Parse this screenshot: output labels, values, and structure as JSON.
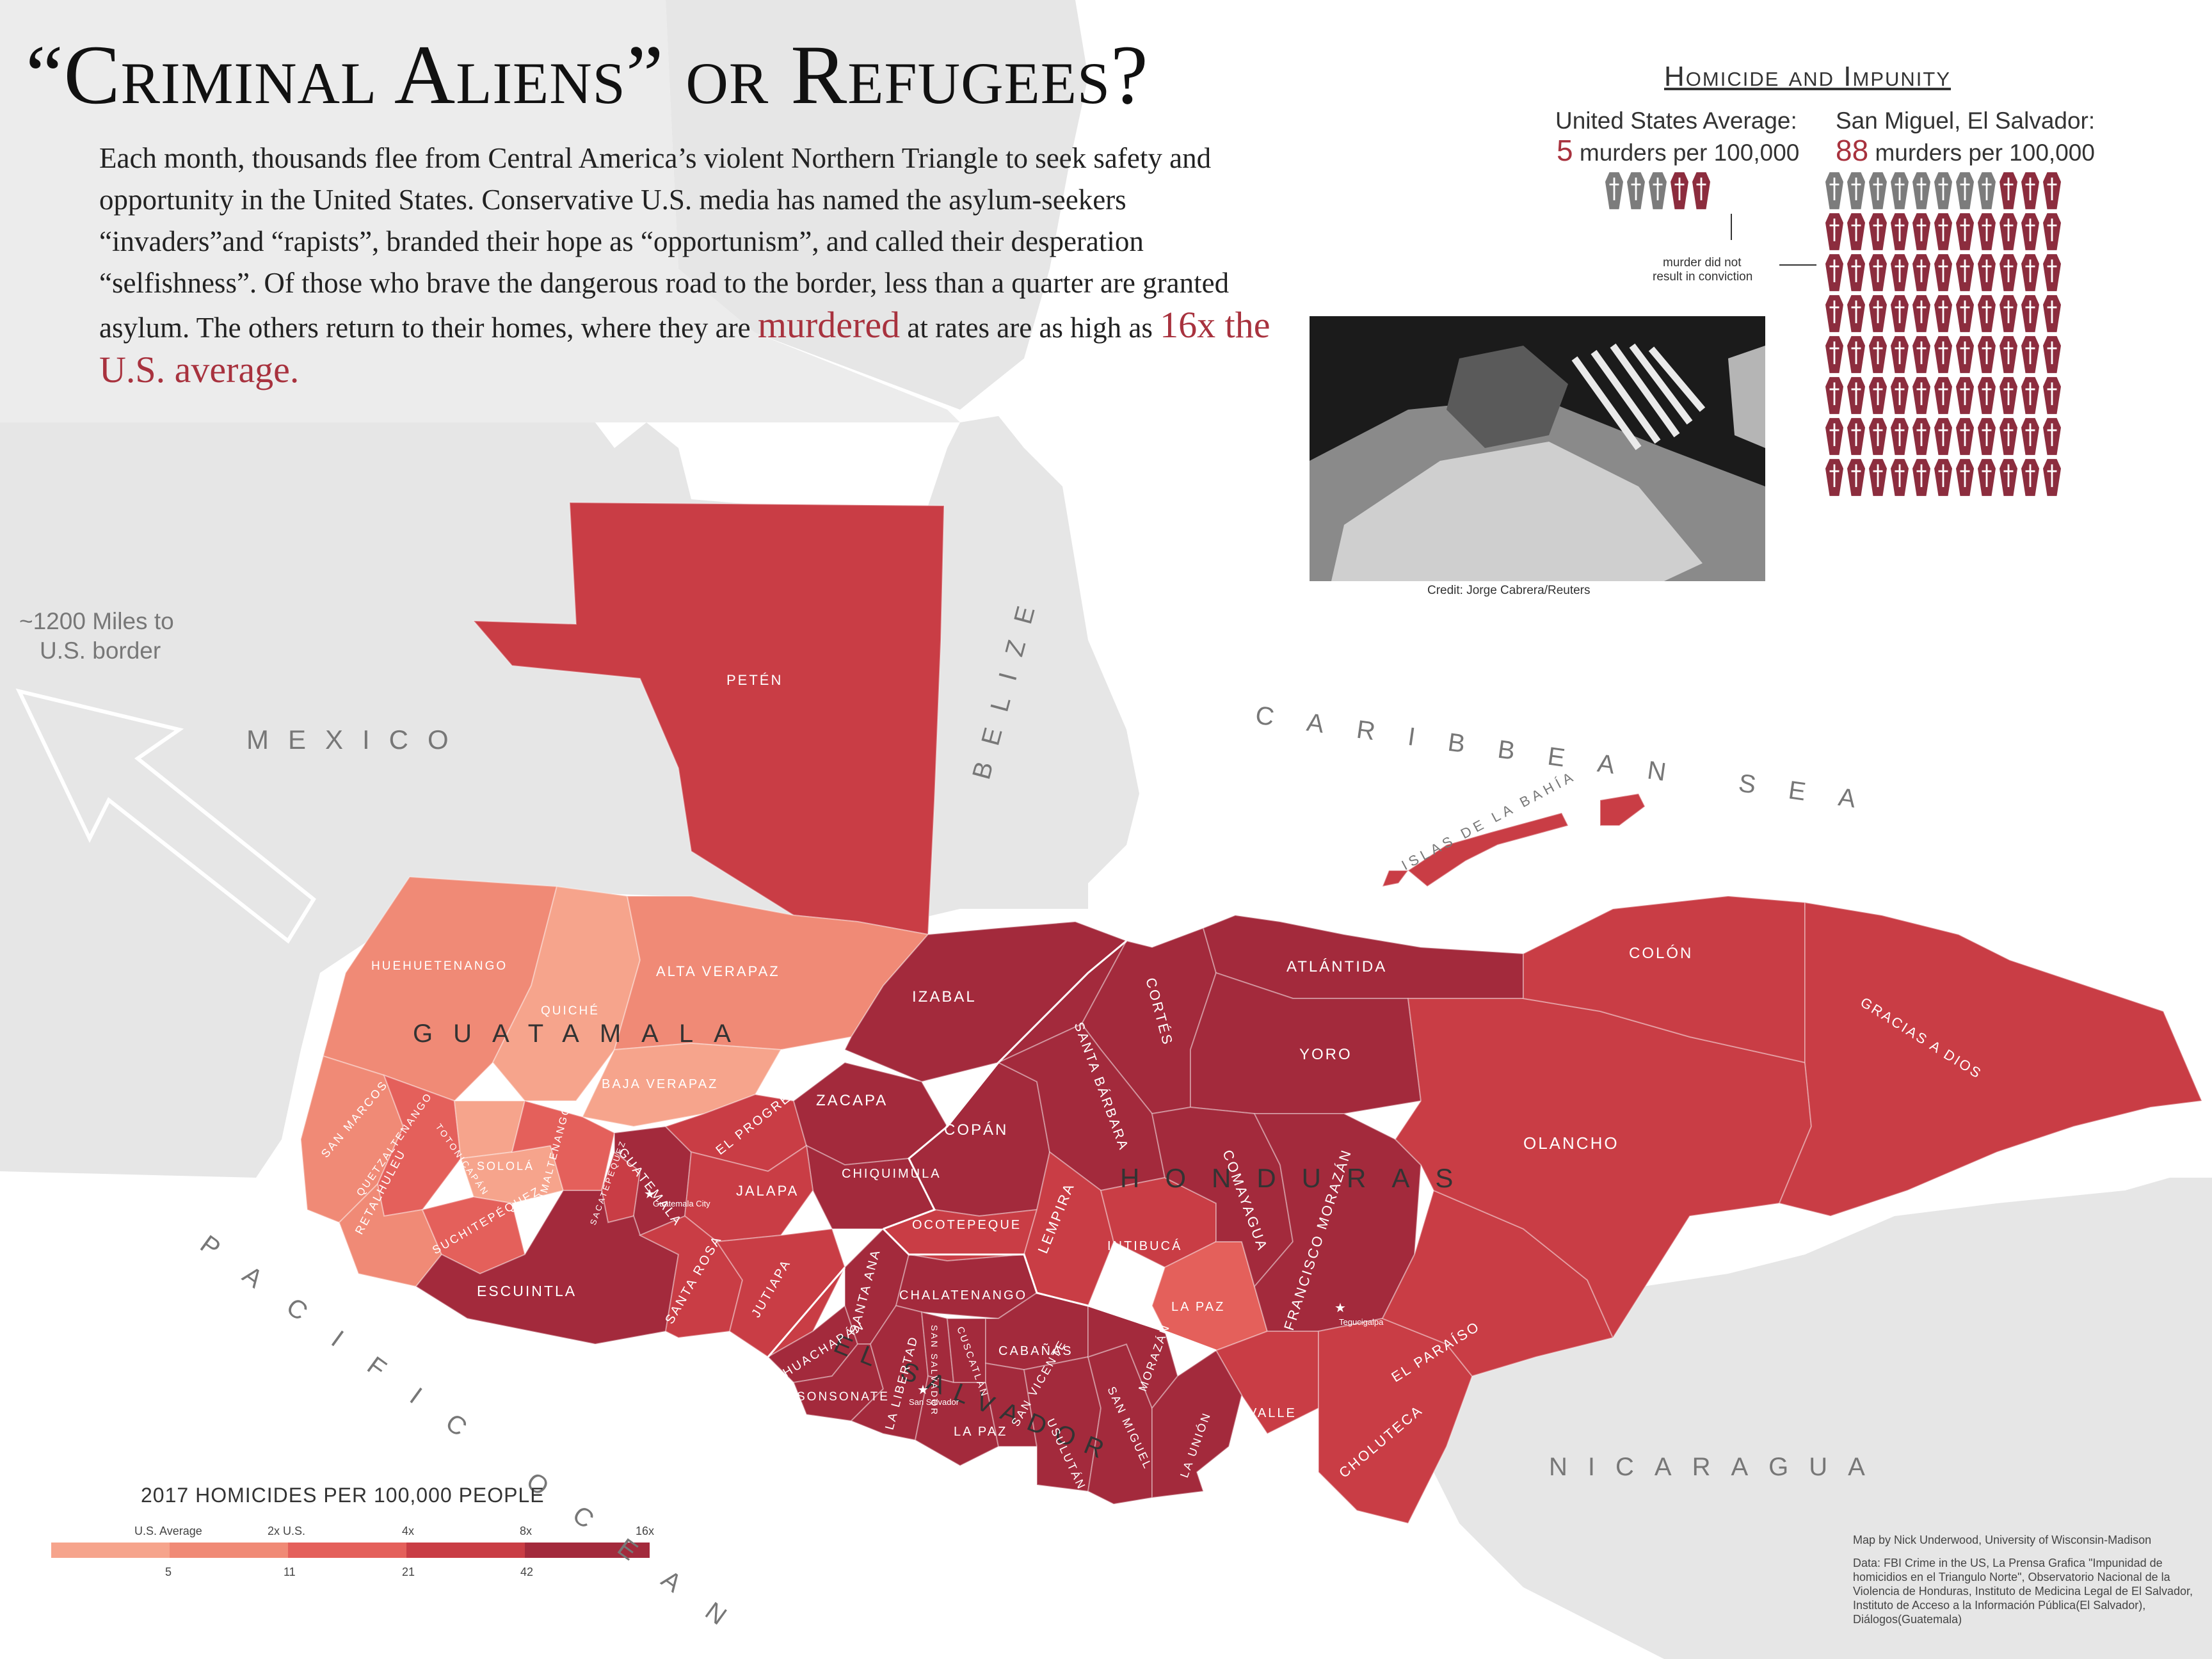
{
  "title": "“Criminal Aliens” or Refugees?",
  "intro": {
    "part1": "Each month, thousands flee from Central America’s violent Northern Triangle to seek safety and opportunity in the United States. Conservative U.S. media has named the asylum-seekers “invaders”and “rapists”, branded their hope as “opportunism”, and called their desperation “selfishness”. Of those who brave the dangerous road to the border, less than a quarter are granted asylum. The others return to their homes, where they are ",
    "hl1": "murdered",
    "part2": " at rates are as high as ",
    "hl2": "16x the U.S. average."
  },
  "arrow_label_1": "~1200 Miles to",
  "arrow_label_2": "U.S. border",
  "panel": {
    "title": "Homicide and Impunity",
    "us_head": "United States Average:",
    "us_value": "5",
    "us_unit": "murders per 100,000",
    "sm_head": "San Miguel, El Salvador:",
    "sm_value": "88",
    "sm_unit": "murders per 100,000",
    "note_1": "murder did not",
    "note_2": "result in conviction",
    "us_coffins_total": 5,
    "us_coffins_grey": 3,
    "sm_coffins_total": 88,
    "sm_coffins_grey": 8,
    "credit": "Credit: Jorge Cabrera/Reuters"
  },
  "countries": {
    "mexico": "MEXICO",
    "belize": "BELIZE",
    "guatemala": "GUATAMALA",
    "honduras": "HONDURAS",
    "el_salvador": "EL SALVADOR",
    "nicaragua": "NICARAGUA",
    "caribbean": "CARIBBEAN SEA",
    "pacific": "PACIFIC OCEAN",
    "islas": "ISLAS DE LA BAHÍA"
  },
  "departments": {
    "peten": "PETÉN",
    "huehuetenango": "HUEHUETENANGO",
    "quiche": "QUICHÉ",
    "alta_verapaz": "ALTA VERAPAZ",
    "baja_verapaz": "BAJA VERAPAZ",
    "izabal": "IZABAL",
    "san_marcos": "SAN MARCOS",
    "quetzaltenango": "QUETZALTENANGO",
    "totonicapan": "TOTONICAPÁN",
    "solola": "SOLOLÁ",
    "chimaltenango": "CHIMALTENANGO",
    "sacatepequez": "SACATEPEQUEZ",
    "guatemala": "GUATEMALA",
    "el_progreso": "EL PROGRESO",
    "zacapa": "ZACAPA",
    "chiquimula": "CHIQUIMULA",
    "jalapa": "JALAPA",
    "retalhuleu": "RETALHULEU",
    "suchitepequez": "SUCHITEPÉQUEZ",
    "escuintla": "ESCUINTLA",
    "santa_rosa": "SANTA ROSA",
    "jutiapa": "JUTIAPA",
    "copan": "COPÁN",
    "cortes": "CORTÉS",
    "santa_barbara": "SANTA BÁRBARA",
    "atlantida": "ATLÁNTIDA",
    "yoro": "YORO",
    "colon": "COLÓN",
    "gracias_a_dios": "GRACIAS A DIOS",
    "olancho": "OLANCHO",
    "comayagua": "COMAYAGUA",
    "francisco_morazan": "FRANCISCO MORAZÁN",
    "el_paraiso": "EL PARAÍSO",
    "ocotepeque": "OCOTEPEQUE",
    "lempira": "LEMPIRA",
    "intibuca": "INTIBUCÁ",
    "la_paz_hn": "LA PAZ",
    "choluteca": "CHOLUTECA",
    "valle": "VALLE",
    "chalatenango": "CHALATENANGO",
    "santa_ana": "SANTA ANA",
    "ahuachapan": "AHUACHAPÁN",
    "sonsonate": "SONSONATE",
    "la_libertad": "LA LIBERTAD",
    "san_salvador": "SAN SALVADOR",
    "cuscatlan": "CUSCATLÁN",
    "cabanas": "CABAÑAS",
    "la_paz_sv": "LA PAZ",
    "san_vicente": "SAN VICENTE",
    "usulutan": "USULUTÁN",
    "san_miguel": "SAN MIGUEL",
    "morazan": "MORAZÁN",
    "la_union": "LA UNIÓN"
  },
  "cities": {
    "guatemala_city": "Guatemala City",
    "tegucigalpa": "Tegucigalpa",
    "san_salvador": "San Salvador"
  },
  "legend": {
    "title": "2017 HOMICIDES PER 100,000 PEOPLE",
    "top_labels": [
      "U.S. Average",
      "2x U.S.",
      "4x",
      "8x",
      "16x"
    ],
    "bottom_labels": [
      "5",
      "11",
      "21",
      "42"
    ],
    "colors": [
      "#f6a48c",
      "#f08a76",
      "#e4605b",
      "#c93d45",
      "#a32a3c"
    ]
  },
  "colors": {
    "land_bg": "#e6e6e6",
    "tier1": "#f6a48c",
    "tier2": "#f08a76",
    "tier3": "#e4605b",
    "tier4": "#c93d45",
    "tier5": "#a32a3c",
    "coffin_red": "#8c2d3e",
    "coffin_grey": "#7c7c7c"
  },
  "footer": {
    "byline": "Map by Nick Underwood, University of Wisconsin-Madison",
    "data": "Data: FBI Crime in the US, La Prensa Grafica \"Impunidad de homicidios en el Triangulo Norte\", Observatorio Nacional de la Violencia de Honduras, Instituto de Medicina Legal de El Salvador, Instituto de Acceso a la Información Pública(El Salvador), Diálogos(Guatemala)"
  }
}
